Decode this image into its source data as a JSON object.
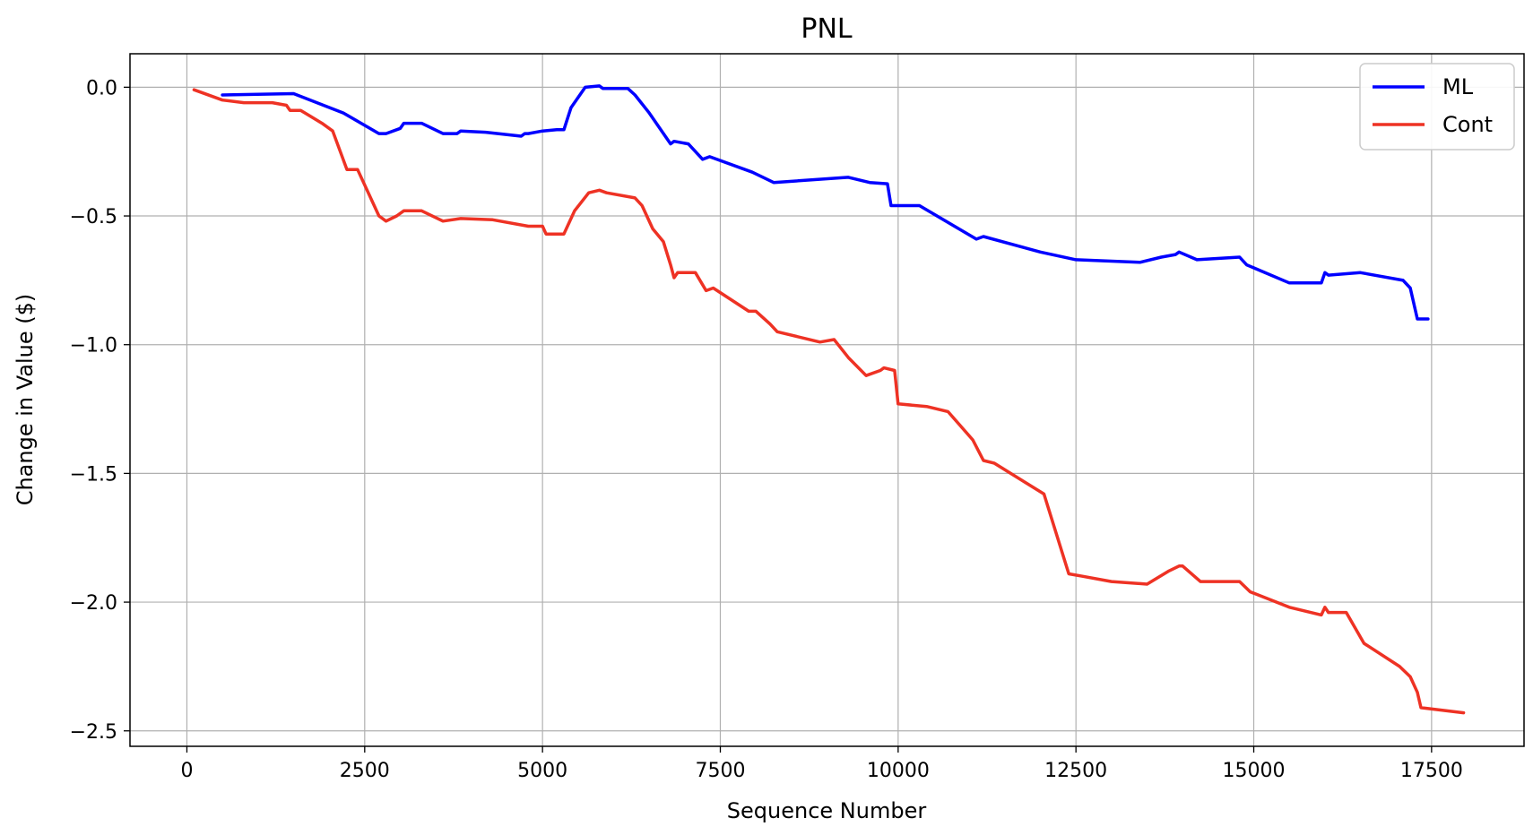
{
  "chart_data": {
    "type": "line",
    "title": "PNL",
    "xlabel": "Sequence Number",
    "ylabel": "Change in Value ($)",
    "xlim": [
      -800,
      18800
    ],
    "ylim": [
      -2.56,
      0.13
    ],
    "xticks": [
      0,
      2500,
      5000,
      7500,
      10000,
      12500,
      15000,
      17500
    ],
    "xtick_labels": [
      "0",
      "2500",
      "5000",
      "7500",
      "10000",
      "12500",
      "15000",
      "17500"
    ],
    "yticks": [
      0.0,
      -0.5,
      -1.0,
      -1.5,
      -2.0,
      -2.5
    ],
    "ytick_labels": [
      "0.0",
      "−0.5",
      "−1.0",
      "−1.5",
      "−2.0",
      "−2.5"
    ],
    "grid": true,
    "legend_position": "top-right",
    "series": [
      {
        "name": "ML",
        "color": "#0000ff",
        "points": [
          [
            500,
            -0.03
          ],
          [
            1500,
            -0.025
          ],
          [
            2200,
            -0.1
          ],
          [
            2700,
            -0.18
          ],
          [
            2800,
            -0.18
          ],
          [
            3000,
            -0.16
          ],
          [
            3050,
            -0.14
          ],
          [
            3300,
            -0.14
          ],
          [
            3600,
            -0.18
          ],
          [
            3800,
            -0.18
          ],
          [
            3850,
            -0.17
          ],
          [
            4200,
            -0.175
          ],
          [
            4700,
            -0.19
          ],
          [
            4750,
            -0.18
          ],
          [
            4800,
            -0.18
          ],
          [
            5000,
            -0.17
          ],
          [
            5200,
            -0.165
          ],
          [
            5300,
            -0.165
          ],
          [
            5400,
            -0.08
          ],
          [
            5600,
            0.0
          ],
          [
            5800,
            0.005
          ],
          [
            5850,
            -0.005
          ],
          [
            6200,
            -0.005
          ],
          [
            6300,
            -0.03
          ],
          [
            6500,
            -0.1
          ],
          [
            6800,
            -0.22
          ],
          [
            6850,
            -0.21
          ],
          [
            7050,
            -0.22
          ],
          [
            7250,
            -0.28
          ],
          [
            7350,
            -0.27
          ],
          [
            7950,
            -0.33
          ],
          [
            8250,
            -0.37
          ],
          [
            9300,
            -0.35
          ],
          [
            9600,
            -0.37
          ],
          [
            9850,
            -0.375
          ],
          [
            9900,
            -0.46
          ],
          [
            10300,
            -0.46
          ],
          [
            11100,
            -0.59
          ],
          [
            11200,
            -0.58
          ],
          [
            12000,
            -0.64
          ],
          [
            12500,
            -0.67
          ],
          [
            13400,
            -0.68
          ],
          [
            13700,
            -0.66
          ],
          [
            13900,
            -0.65
          ],
          [
            13950,
            -0.64
          ],
          [
            14200,
            -0.67
          ],
          [
            14800,
            -0.66
          ],
          [
            14900,
            -0.69
          ],
          [
            15500,
            -0.76
          ],
          [
            15950,
            -0.76
          ],
          [
            16000,
            -0.72
          ],
          [
            16050,
            -0.73
          ],
          [
            16500,
            -0.72
          ],
          [
            17100,
            -0.75
          ],
          [
            17200,
            -0.78
          ],
          [
            17300,
            -0.9
          ],
          [
            17450,
            -0.9
          ]
        ]
      },
      {
        "name": "Cont",
        "color": "#ee3224",
        "points": [
          [
            100,
            -0.01
          ],
          [
            500,
            -0.05
          ],
          [
            800,
            -0.06
          ],
          [
            1200,
            -0.06
          ],
          [
            1400,
            -0.07
          ],
          [
            1450,
            -0.09
          ],
          [
            1600,
            -0.09
          ],
          [
            1900,
            -0.14
          ],
          [
            2050,
            -0.17
          ],
          [
            2250,
            -0.32
          ],
          [
            2400,
            -0.32
          ],
          [
            2700,
            -0.5
          ],
          [
            2800,
            -0.52
          ],
          [
            2950,
            -0.5
          ],
          [
            3050,
            -0.48
          ],
          [
            3300,
            -0.48
          ],
          [
            3600,
            -0.52
          ],
          [
            3850,
            -0.51
          ],
          [
            4300,
            -0.515
          ],
          [
            4800,
            -0.54
          ],
          [
            5000,
            -0.54
          ],
          [
            5050,
            -0.57
          ],
          [
            5300,
            -0.57
          ],
          [
            5450,
            -0.48
          ],
          [
            5650,
            -0.41
          ],
          [
            5800,
            -0.4
          ],
          [
            5900,
            -0.41
          ],
          [
            6300,
            -0.43
          ],
          [
            6400,
            -0.46
          ],
          [
            6550,
            -0.55
          ],
          [
            6700,
            -0.6
          ],
          [
            6800,
            -0.69
          ],
          [
            6850,
            -0.74
          ],
          [
            6900,
            -0.72
          ],
          [
            7150,
            -0.72
          ],
          [
            7300,
            -0.79
          ],
          [
            7400,
            -0.78
          ],
          [
            7900,
            -0.87
          ],
          [
            8000,
            -0.87
          ],
          [
            8200,
            -0.92
          ],
          [
            8300,
            -0.95
          ],
          [
            8900,
            -0.99
          ],
          [
            9100,
            -0.98
          ],
          [
            9300,
            -1.05
          ],
          [
            9550,
            -1.12
          ],
          [
            9750,
            -1.1
          ],
          [
            9800,
            -1.09
          ],
          [
            9950,
            -1.1
          ],
          [
            10000,
            -1.23
          ],
          [
            10400,
            -1.24
          ],
          [
            10700,
            -1.26
          ],
          [
            11050,
            -1.37
          ],
          [
            11200,
            -1.45
          ],
          [
            11350,
            -1.46
          ],
          [
            12050,
            -1.58
          ],
          [
            12400,
            -1.89
          ],
          [
            12600,
            -1.9
          ],
          [
            13000,
            -1.92
          ],
          [
            13500,
            -1.93
          ],
          [
            13800,
            -1.88
          ],
          [
            13950,
            -1.86
          ],
          [
            14000,
            -1.86
          ],
          [
            14250,
            -1.92
          ],
          [
            14800,
            -1.92
          ],
          [
            14950,
            -1.96
          ],
          [
            15500,
            -2.02
          ],
          [
            15950,
            -2.05
          ],
          [
            16000,
            -2.02
          ],
          [
            16050,
            -2.04
          ],
          [
            16300,
            -2.04
          ],
          [
            16550,
            -2.16
          ],
          [
            17050,
            -2.25
          ],
          [
            17200,
            -2.29
          ],
          [
            17300,
            -2.35
          ],
          [
            17350,
            -2.41
          ],
          [
            17950,
            -2.43
          ]
        ]
      }
    ]
  }
}
